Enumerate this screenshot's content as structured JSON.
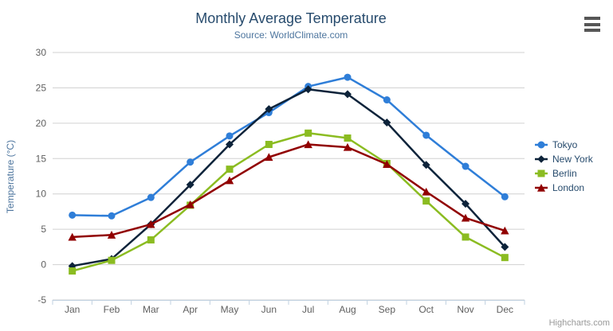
{
  "header": {
    "title": "Monthly Average Temperature",
    "subtitle": "Source: WorldClimate.com"
  },
  "credit_label": "Highcharts.com",
  "icons": {
    "context_menu": "hamburger-icon"
  },
  "colors": {
    "title": "#274b6d",
    "subtitle": "#4d759e",
    "axis_label": "#606060",
    "axis_title": "#4d759e",
    "grid_line": "#d0d0d0",
    "axis_line": "#c0d0e0",
    "credit": "#999999"
  },
  "chart_data": {
    "type": "line",
    "title": "Monthly Average Temperature",
    "subtitle": "Source: WorldClimate.com",
    "categories": [
      "Jan",
      "Feb",
      "Mar",
      "Apr",
      "May",
      "Jun",
      "Jul",
      "Aug",
      "Sep",
      "Oct",
      "Nov",
      "Dec"
    ],
    "series": [
      {
        "name": "Tokyo",
        "color": "#2f7ed8",
        "marker": "circle",
        "values": [
          7.0,
          6.9,
          9.5,
          14.5,
          18.2,
          21.5,
          25.2,
          26.5,
          23.3,
          18.3,
          13.9,
          9.6
        ]
      },
      {
        "name": "New York",
        "color": "#0d233a",
        "marker": "diamond",
        "values": [
          -0.2,
          0.8,
          5.7,
          11.3,
          17.0,
          22.0,
          24.8,
          24.1,
          20.1,
          14.1,
          8.6,
          2.5
        ]
      },
      {
        "name": "Berlin",
        "color": "#8bbc21",
        "marker": "square",
        "values": [
          -0.9,
          0.6,
          3.5,
          8.4,
          13.5,
          17.0,
          18.6,
          17.9,
          14.3,
          9.0,
          3.9,
          1.0
        ]
      },
      {
        "name": "London",
        "color": "#910000",
        "marker": "triangle",
        "values": [
          3.9,
          4.2,
          5.7,
          8.5,
          11.9,
          15.2,
          17.0,
          16.6,
          14.2,
          10.3,
          6.6,
          4.8
        ]
      }
    ],
    "xlabel": "",
    "ylabel": "Temperature (°C)",
    "ylim": [
      -5,
      30
    ],
    "yticks": [
      -5,
      0,
      5,
      10,
      15,
      20,
      25,
      30
    ],
    "grid": true,
    "legend_position": "right"
  }
}
